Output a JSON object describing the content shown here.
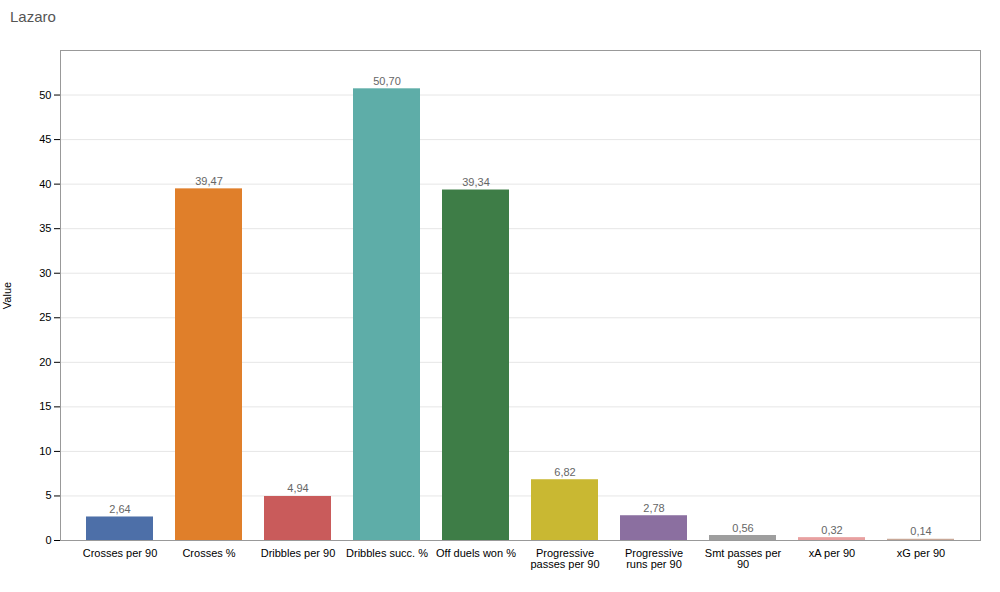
{
  "chart_data": {
    "type": "bar",
    "title": "Lazaro",
    "ylabel": "Value",
    "categories": [
      "Crosses per 90",
      "Crosses %",
      "Dribbles per 90",
      "Dribbles succ. %",
      "Off duels won %",
      "Progressive\npasses per 90",
      "Progressive\nruns per 90",
      "Smt passes per\n90",
      "xA per 90",
      "xG per 90"
    ],
    "values": [
      2.64,
      39.47,
      4.94,
      50.7,
      39.34,
      6.82,
      2.78,
      0.56,
      0.32,
      0.14
    ],
    "value_labels": [
      "2,64",
      "39,47",
      "4,94",
      "50,70",
      "39,34",
      "6,82",
      "2,78",
      "0,56",
      "0,32",
      "0,14"
    ],
    "colors": [
      "#4d6fa8",
      "#e07f2a",
      "#c95b5b",
      "#5eada8",
      "#3e7d47",
      "#c9b832",
      "#8b6fa0",
      "#9e9e9e",
      "#e8a0a0",
      "#c8a898"
    ],
    "ylim": [
      0,
      55
    ],
    "yticks": [
      0,
      5,
      10,
      15,
      20,
      25,
      30,
      35,
      40,
      45,
      50
    ],
    "grid": true,
    "data_labels": true
  }
}
